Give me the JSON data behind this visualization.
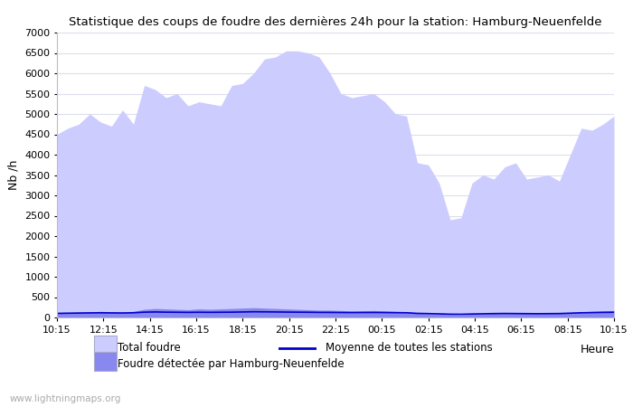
{
  "title": "Statistique des coups de foudre des dernières 24h pour la station: Hamburg-Neuenfelde",
  "ylabel": "Nb /h",
  "xlabel": "Heure",
  "watermark": "www.lightningmaps.org",
  "x_labels": [
    "10:15",
    "12:15",
    "14:15",
    "16:15",
    "18:15",
    "20:15",
    "22:15",
    "00:15",
    "02:15",
    "04:15",
    "06:15",
    "08:15",
    "10:15"
  ],
  "ylim": [
    0,
    7000
  ],
  "yticks": [
    0,
    500,
    1000,
    1500,
    2000,
    2500,
    3000,
    3500,
    4000,
    4500,
    5000,
    5500,
    6000,
    6500,
    7000
  ],
  "total_foudre_color": "#ccccff",
  "local_foudre_color": "#8888ee",
  "moyenne_color": "#0000cc",
  "background_color": "#ffffff",
  "grid_color": "#ddddee",
  "total_foudre": [
    4500,
    4650,
    4750,
    5000,
    4800,
    4700,
    5100,
    4750,
    5700,
    5600,
    5400,
    5500,
    5200,
    5300,
    5250,
    5200,
    5700,
    5750,
    6000,
    6350,
    6400,
    6550,
    6550,
    6500,
    6400,
    6000,
    5500,
    5400,
    5450,
    5500,
    5300,
    5000,
    4950,
    3800,
    3750,
    3300,
    2400,
    2450,
    3300,
    3500,
    3400,
    3700,
    3800,
    3400,
    3450,
    3500,
    3350,
    4000,
    4650,
    4600,
    4750,
    4950
  ],
  "local_foudre": [
    100,
    120,
    130,
    140,
    150,
    140,
    130,
    150,
    200,
    220,
    210,
    200,
    190,
    210,
    200,
    210,
    220,
    230,
    240,
    230,
    220,
    210,
    200,
    190,
    180,
    180,
    170,
    160,
    165,
    170,
    160,
    150,
    140,
    100,
    90,
    80,
    70,
    65,
    80,
    90,
    100,
    110,
    105,
    100,
    95,
    100,
    105,
    120,
    140,
    150,
    160,
    170
  ],
  "moyenne": [
    100,
    105,
    108,
    112,
    115,
    112,
    110,
    115,
    130,
    135,
    130,
    128,
    125,
    128,
    126,
    128,
    130,
    135,
    140,
    138,
    135,
    132,
    130,
    128,
    125,
    124,
    122,
    120,
    122,
    123,
    121,
    118,
    116,
    100,
    95,
    88,
    80,
    78,
    85,
    90,
    95,
    98,
    96,
    94,
    92,
    94,
    96,
    105,
    115,
    120,
    125,
    128
  ],
  "legend_items": [
    "Total foudre",
    "Moyenne de toutes les stations",
    "Foudre détectée par Hamburg-Neuenfelde"
  ]
}
